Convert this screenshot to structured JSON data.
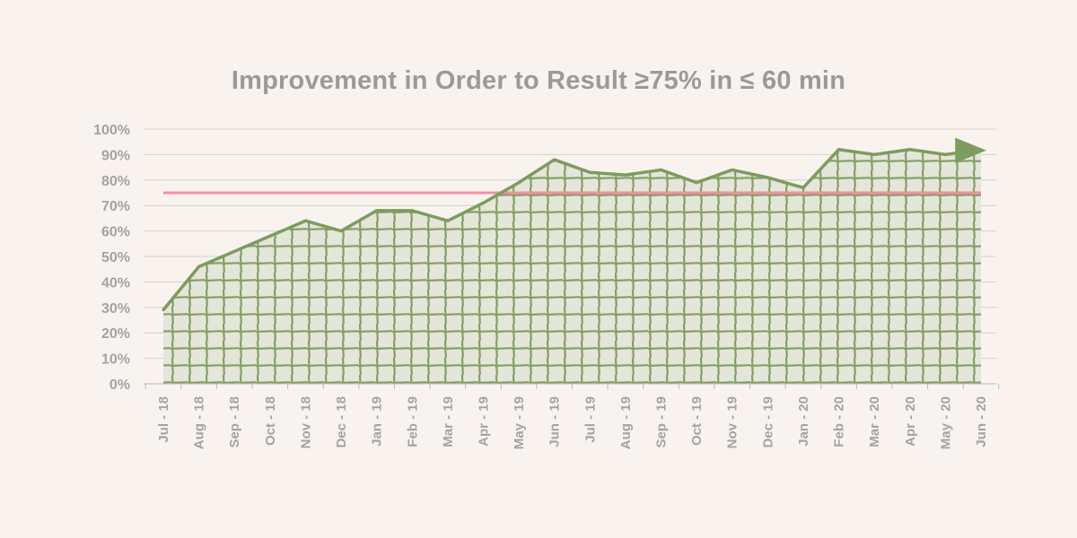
{
  "colors": {
    "background": "#f9f3ef",
    "fill": "#e3e5d8",
    "line": "#7e9b60",
    "target": "#ef8fa6",
    "grid": "#d6d0cc",
    "text": "#9a9a9a"
  },
  "chart_data": {
    "type": "area",
    "title": "Improvement in Order to Result ≥75% in ≤ 60 min",
    "xlabel": "",
    "ylabel": "",
    "ylim": [
      0,
      100
    ],
    "y_ticks": [
      "0%",
      "10%",
      "20%",
      "30%",
      "40%",
      "50%",
      "60%",
      "70%",
      "80%",
      "90%",
      "100%"
    ],
    "grid": true,
    "legend": "none",
    "categories": [
      "Jul - 18",
      "Aug - 18",
      "Sep - 18",
      "Oct - 18",
      "Nov - 18",
      "Dec - 18",
      "Jan - 19",
      "Feb - 19",
      "Mar - 19",
      "Apr - 19",
      "May - 19",
      "Jun - 19",
      "Jul - 19",
      "Aug - 19",
      "Sep - 19",
      "Oct - 19",
      "Nov - 19",
      "Dec - 19",
      "Jan - 20",
      "Feb - 20",
      "Mar - 20",
      "Apr - 20",
      "May - 20",
      "Jun - 20"
    ],
    "series": [
      {
        "values": [
          29,
          46,
          52,
          58,
          64,
          60,
          68,
          68,
          64,
          71,
          79,
          88,
          83,
          82,
          84,
          79,
          84,
          81,
          77,
          92,
          90,
          92,
          90,
          92
        ]
      }
    ],
    "target_value": 75
  }
}
